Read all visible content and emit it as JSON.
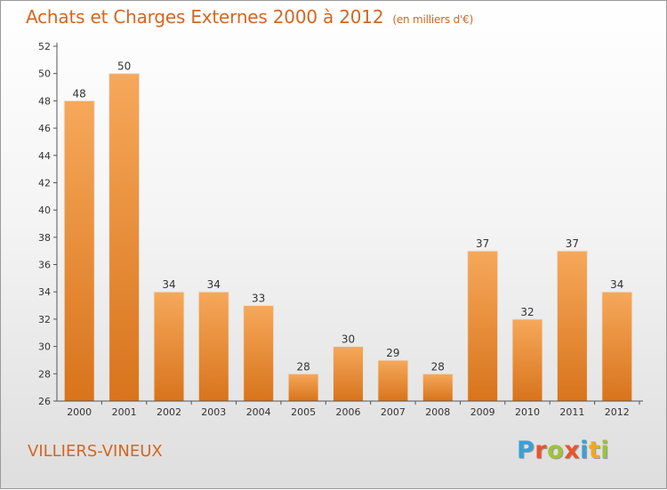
{
  "header": {
    "title": "Achats et Charges Externes 2000 à 2012",
    "subtitle": "(en milliers d'€)"
  },
  "footer": {
    "commune": "VILLIERS-VINEUX",
    "logo_letters": [
      "P",
      "r",
      "o",
      "x",
      "i",
      "t",
      "i"
    ],
    "logo_colors": [
      "#3b9fd8",
      "#e8552d",
      "#9bc43b",
      "#e8552d",
      "#3b9fd8",
      "#f0a91e",
      "#9bc43b"
    ]
  },
  "colors": {
    "bar_top": "#f6a85a",
    "bar_bottom": "#d8741c",
    "axis": "#555555",
    "text": "#333333",
    "accent": "#d4661f"
  },
  "chart_data": {
    "type": "bar",
    "categories": [
      "2000",
      "2001",
      "2002",
      "2003",
      "2004",
      "2005",
      "2006",
      "2007",
      "2008",
      "2009",
      "2010",
      "2011",
      "2012"
    ],
    "values": [
      48,
      50,
      34,
      34,
      33,
      28,
      30,
      29,
      28,
      37,
      32,
      37,
      34
    ],
    "data_labels": [
      "48",
      "50",
      "34",
      "34",
      "33",
      "28",
      "30",
      "29",
      "28",
      "37",
      "32",
      "37",
      "34"
    ],
    "y_ticks": [
      "26",
      "28",
      "30",
      "32",
      "34",
      "36",
      "38",
      "40",
      "42",
      "44",
      "46",
      "48",
      "50",
      "52"
    ],
    "ylim": [
      26,
      52
    ],
    "grid": false,
    "legend": "none",
    "xlabel": "",
    "ylabel": ""
  }
}
